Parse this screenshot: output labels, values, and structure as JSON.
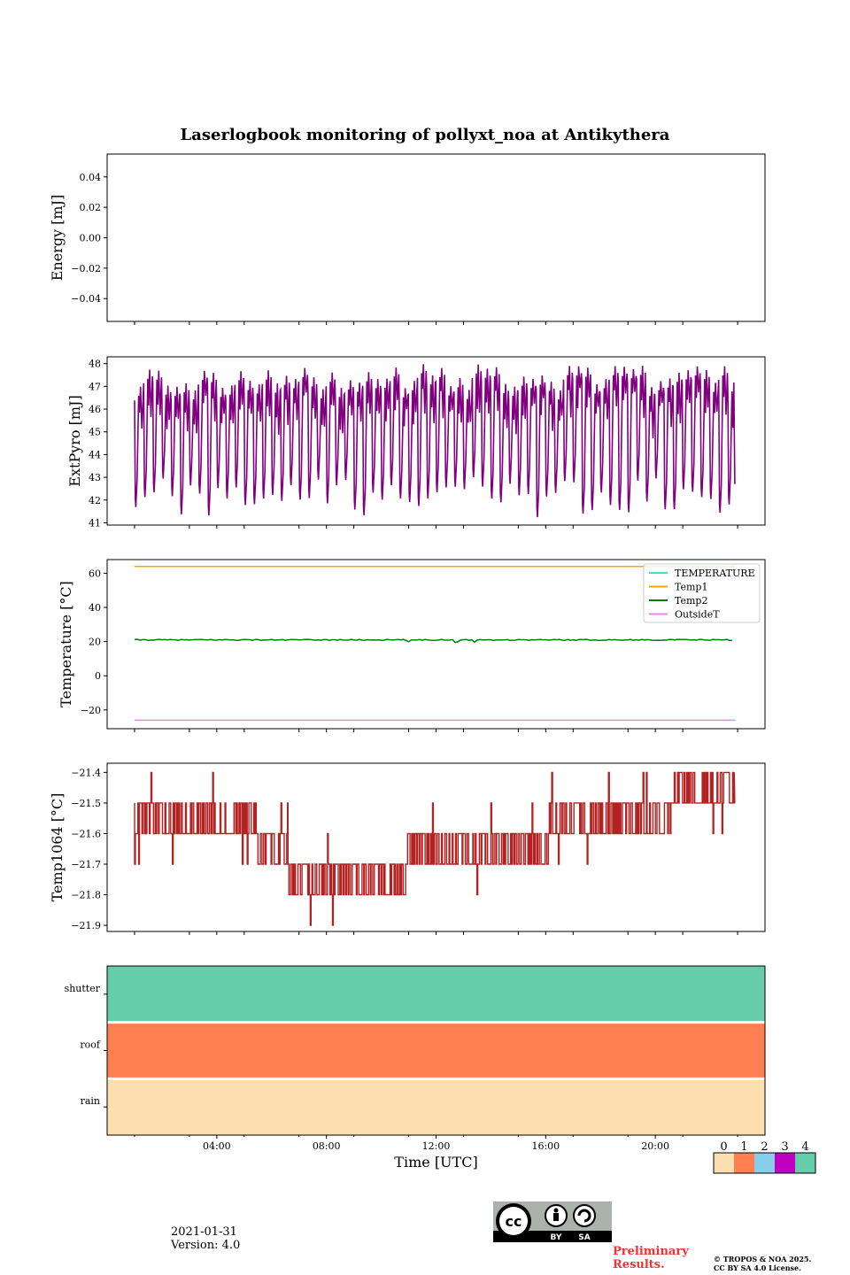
{
  "title": "Laserlogbook monitoring of pollyxt_noa at Antikythera",
  "footer": {
    "date": "2021-01-31",
    "version": "Version: 4.0",
    "preliminary": "Preliminary Results.",
    "copyright_line1": "© TROPOS & NOA 2025.",
    "copyright_line2": "CC BY SA 4.0 License.",
    "cc_label_by": "BY",
    "cc_label_sa": "SA",
    "cc_text": "cc"
  },
  "colors": {
    "extpyro": "#800080",
    "TEMPERATURE": "#40e0d0",
    "Temp1": "#ffa500",
    "Temp2": "#008000",
    "OutsideT": "#ee82ee",
    "temp1064": "#b22222",
    "flags": [
      "#fddeb0",
      "#ff7f50",
      "#87ceeb",
      "#c000c0",
      "#66cdaa"
    ]
  },
  "chart_data": [
    {
      "type": "line",
      "ylabel": "Energy [mJ]",
      "ylim": [
        -0.055,
        0.055
      ],
      "yticks": [
        "0.04",
        "0.02",
        "0.00",
        "−0.02",
        "−0.04"
      ],
      "ytick_values": [
        0.04,
        0.02,
        0.0,
        -0.02,
        -0.04
      ],
      "series": []
    },
    {
      "type": "line",
      "ylabel": "ExtPyro [mJ]",
      "ylim": [
        40.9,
        48.3
      ],
      "yticks": [
        "48",
        "47",
        "46",
        "45",
        "44",
        "43",
        "42",
        "41"
      ],
      "ytick_values": [
        48,
        47,
        46,
        45,
        44,
        43,
        42,
        41
      ],
      "x_range_hours": [
        1.0,
        22.9
      ],
      "oscillation": {
        "period_hours": 0.333,
        "min_range": [
          41.2,
          43.0
        ],
        "max_range": [
          46.8,
          48.0
        ]
      }
    },
    {
      "type": "line",
      "ylabel": "Temperature [°C]",
      "ylim": [
        -31,
        68
      ],
      "yticks": [
        "60",
        "40",
        "20",
        "0",
        "−20"
      ],
      "ytick_values": [
        60,
        40,
        20,
        0,
        -20
      ],
      "legend": [
        "TEMPERATURE",
        "Temp1",
        "Temp2",
        "OutsideT"
      ],
      "legend_position": "top-right",
      "series": [
        {
          "name": "Temp1",
          "x": [
            1.0,
            22.9
          ],
          "values": [
            64,
            64
          ]
        },
        {
          "name": "Temp2",
          "x": [
            1.0,
            22.9
          ],
          "values": [
            21,
            21
          ]
        },
        {
          "name": "OutsideT",
          "x": [
            1.0,
            22.9
          ],
          "values": [
            -26,
            -26
          ]
        }
      ]
    },
    {
      "type": "line",
      "ylabel": "Temp1064 [°C]",
      "ylim": [
        -21.92,
        -21.37
      ],
      "yticks": [
        "−21.4",
        "−21.5",
        "−21.6",
        "−21.7",
        "−21.8",
        "−21.9"
      ],
      "ytick_values": [
        -21.4,
        -21.5,
        -21.6,
        -21.7,
        -21.8,
        -21.9
      ],
      "x_range_hours": [
        1.0,
        22.9
      ],
      "level_segments": [
        {
          "x": [
            1.0,
            5.5
          ],
          "base": -21.6,
          "alt": -21.5
        },
        {
          "x": [
            5.5,
            6.6
          ],
          "base": -21.6,
          "alt": -21.7
        },
        {
          "x": [
            6.6,
            9.6
          ],
          "base": -21.7,
          "alt": -21.8
        },
        {
          "x": [
            9.6,
            10.9
          ],
          "base": -21.7,
          "alt": -21.8
        },
        {
          "x": [
            10.9,
            11.6
          ],
          "base": -21.6,
          "alt": -21.7
        },
        {
          "x": [
            11.6,
            16.1
          ],
          "base": -21.7,
          "alt": -21.6
        },
        {
          "x": [
            16.1,
            20.6
          ],
          "base": -21.6,
          "alt": -21.5
        },
        {
          "x": [
            20.6,
            22.9
          ],
          "base": -21.5,
          "alt": -21.4
        }
      ]
    },
    {
      "type": "heatmap",
      "rows": [
        "shutter",
        "roof",
        "rain"
      ],
      "row_values": [
        4,
        1,
        0
      ],
      "xlabel": "Time [UTC]",
      "xticks": [
        "04:00",
        "08:00",
        "12:00",
        "16:00",
        "20:00"
      ],
      "xtick_values": [
        4,
        8,
        12,
        16,
        20
      ],
      "colorbar_ticks": [
        "0",
        "1",
        "2",
        "3",
        "4"
      ]
    }
  ]
}
